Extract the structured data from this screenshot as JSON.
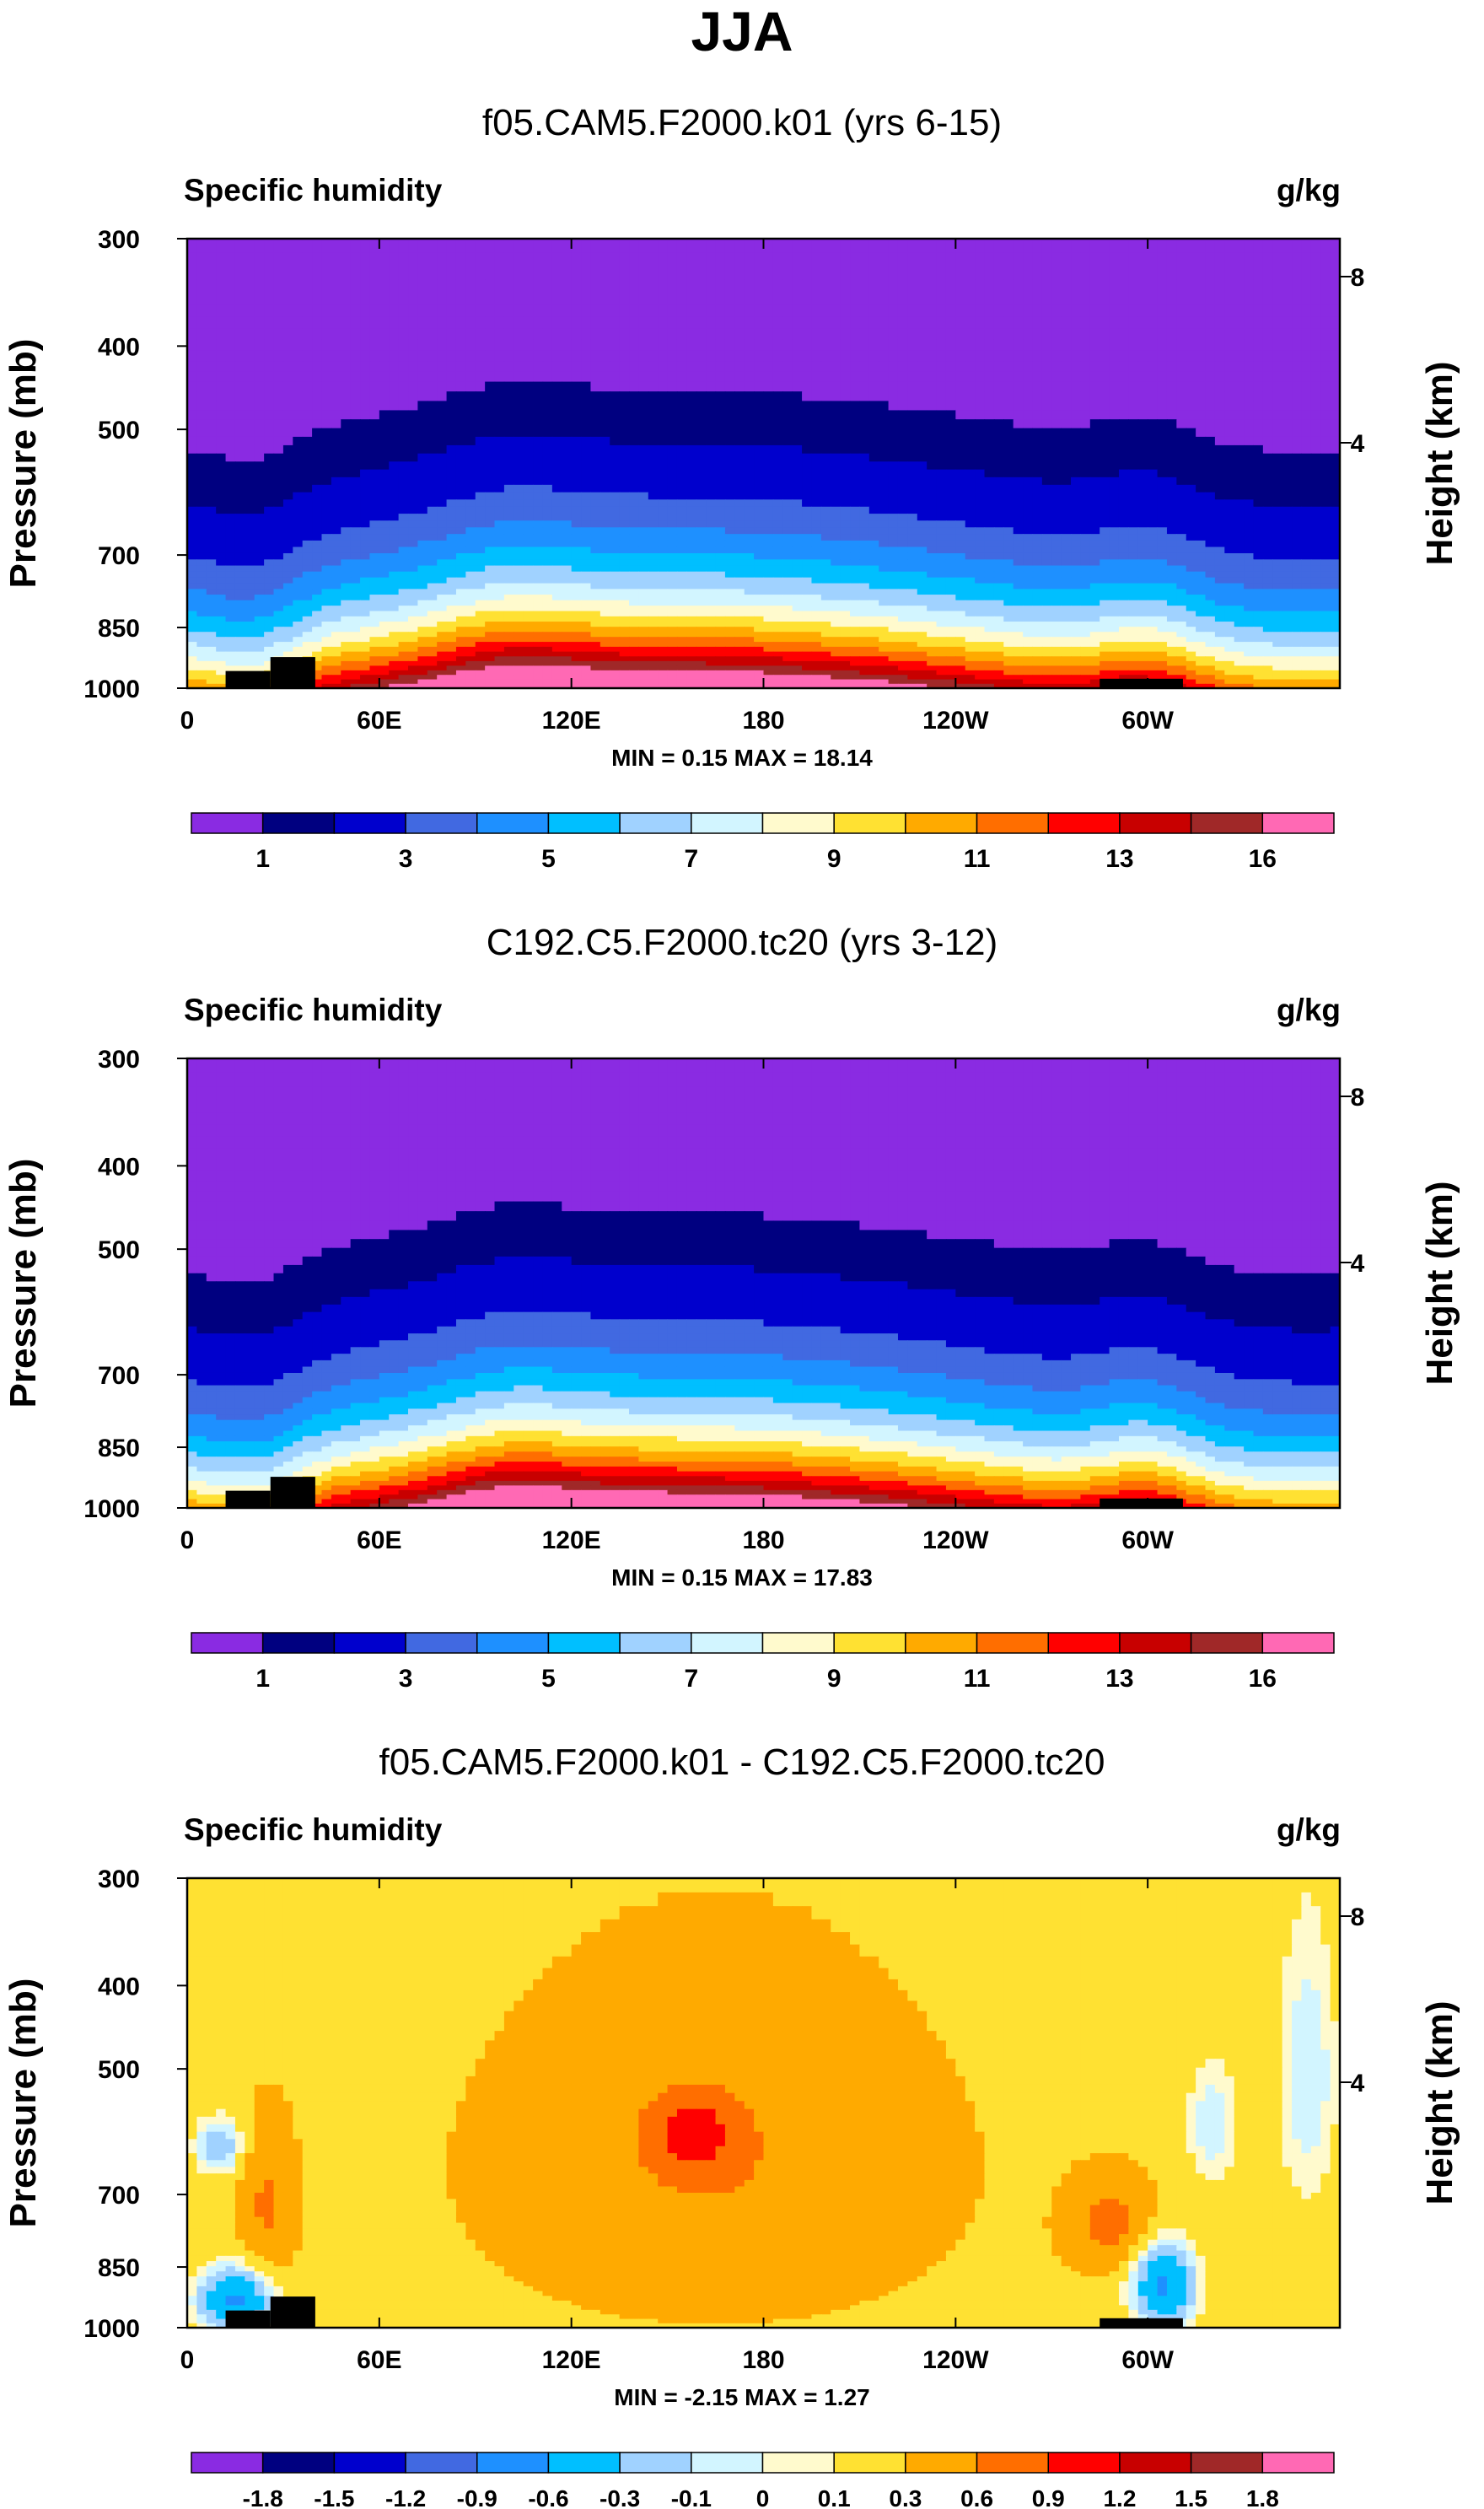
{
  "figure_title": "JJA",
  "chart_data": [
    {
      "type": "heatmap",
      "title": "f05.CAM5.F2000.k01 (yrs 6-15)",
      "subtitle_left": "Specific humidity",
      "units": "g/kg",
      "ylabel": "Pressure (mb)",
      "ylabel_right": "Height (km)",
      "y_ticks": [
        300,
        400,
        500,
        700,
        850,
        1000
      ],
      "y_ticks_right": [
        8,
        4
      ],
      "x_ticks": [
        "0",
        "60E",
        "120E",
        "180",
        "120W",
        "60W"
      ],
      "x_tick_values": [
        0,
        60,
        120,
        180,
        240,
        300
      ],
      "xlim": [
        0,
        360
      ],
      "ylim": [
        1000,
        300
      ],
      "stats": "MIN =   0.15  MAX =  18.14",
      "min": 0.15,
      "max": 18.14,
      "colorbar_labels": [
        "1",
        "3",
        "5",
        "7",
        "9",
        "11",
        "13",
        "16"
      ],
      "levels": [
        0.5,
        1,
        2,
        3,
        4,
        5,
        6,
        7,
        8,
        9,
        10,
        11,
        12,
        13,
        14,
        16
      ],
      "colors": [
        "#8a2be2",
        "#000080",
        "#0000cd",
        "#4169e1",
        "#1e90ff",
        "#00bfff",
        "#a0d2ff",
        "#d2f5ff",
        "#fffacd",
        "#ffe132",
        "#ffaa00",
        "#ff6e00",
        "#ff0000",
        "#c80000",
        "#a02828",
        "#ff69b4"
      ],
      "land_mask_color": "#000000"
    },
    {
      "type": "heatmap",
      "title": "C192.C5.F2000.tc20 (yrs 3-12)",
      "subtitle_left": "Specific humidity",
      "units": "g/kg",
      "ylabel": "Pressure (mb)",
      "ylabel_right": "Height (km)",
      "y_ticks": [
        300,
        400,
        500,
        700,
        850,
        1000
      ],
      "y_ticks_right": [
        8,
        4
      ],
      "x_ticks": [
        "0",
        "60E",
        "120E",
        "180",
        "120W",
        "60W"
      ],
      "x_tick_values": [
        0,
        60,
        120,
        180,
        240,
        300
      ],
      "xlim": [
        0,
        360
      ],
      "ylim": [
        1000,
        300
      ],
      "stats": "MIN =   0.15  MAX =  17.83",
      "min": 0.15,
      "max": 17.83,
      "colorbar_labels": [
        "1",
        "3",
        "5",
        "7",
        "9",
        "11",
        "13",
        "16"
      ],
      "levels": [
        0.5,
        1,
        2,
        3,
        4,
        5,
        6,
        7,
        8,
        9,
        10,
        11,
        12,
        13,
        14,
        16
      ],
      "colors": [
        "#8a2be2",
        "#000080",
        "#0000cd",
        "#4169e1",
        "#1e90ff",
        "#00bfff",
        "#a0d2ff",
        "#d2f5ff",
        "#fffacd",
        "#ffe132",
        "#ffaa00",
        "#ff6e00",
        "#ff0000",
        "#c80000",
        "#a02828",
        "#ff69b4"
      ],
      "land_mask_color": "#000000"
    },
    {
      "type": "heatmap",
      "title": "f05.CAM5.F2000.k01 - C192.C5.F2000.tc20",
      "subtitle_left": "Specific humidity",
      "units": "g/kg",
      "ylabel": "Pressure (mb)",
      "ylabel_right": "Height (km)",
      "y_ticks": [
        300,
        400,
        500,
        700,
        850,
        1000
      ],
      "y_ticks_right": [
        8,
        4
      ],
      "x_ticks": [
        "0",
        "60E",
        "120E",
        "180",
        "120W",
        "60W"
      ],
      "x_tick_values": [
        0,
        60,
        120,
        180,
        240,
        300
      ],
      "xlim": [
        0,
        360
      ],
      "ylim": [
        1000,
        300
      ],
      "stats": "MIN =  -2.15  MAX =   1.27",
      "min": -2.15,
      "max": 1.27,
      "colorbar_labels": [
        "-1.8",
        "-1.5",
        "-1.2",
        "-0.9",
        "-0.6",
        "-0.3",
        "-0.1",
        "0",
        "0.1",
        "0.3",
        "0.6",
        "0.9",
        "1.2",
        "1.5",
        "1.8"
      ],
      "levels": [
        -1.8,
        -1.5,
        -1.2,
        -0.9,
        -0.6,
        -0.3,
        -0.1,
        0,
        0.1,
        0.3,
        0.6,
        0.9,
        1.2,
        1.5,
        1.8
      ],
      "colors": [
        "#8a2be2",
        "#000080",
        "#0000cd",
        "#4169e1",
        "#1e90ff",
        "#00bfff",
        "#a0d2ff",
        "#d2f5ff",
        "#fffacd",
        "#ffe132",
        "#ffaa00",
        "#ff6e00",
        "#ff0000",
        "#c80000",
        "#a02828",
        "#ff69b4"
      ],
      "land_mask_color": "#000000"
    }
  ]
}
